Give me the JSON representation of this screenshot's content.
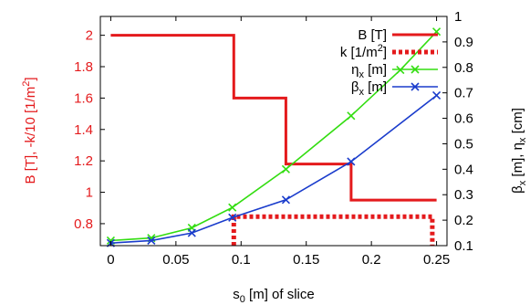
{
  "chart_data": {
    "type": "line",
    "x": [
      0,
      0.0311,
      0.0622,
      0.0933,
      0.1344,
      0.1844,
      0.2222,
      0.25
    ],
    "xlabel": "s₀ [m] of slice",
    "xlim": [
      -0.008,
      0.258
    ],
    "xticks": [
      "0",
      "0.05",
      "0.1",
      "0.15",
      "0.2",
      "0.25"
    ],
    "xtick_values": [
      0,
      0.05,
      0.1,
      0.15,
      0.2,
      0.25
    ],
    "ylabel_left": "B [T], -k/10 [1/m²]",
    "ylim_left": [
      0.66,
      2.12
    ],
    "yticks_left": [
      "0.8",
      "1",
      "1.2",
      "1.4",
      "1.6",
      "1.8",
      "2"
    ],
    "ytick_values_left": [
      0.8,
      1.0,
      1.2,
      1.4,
      1.6,
      1.8,
      2.0
    ],
    "ylabel_right": "βx [m], ηx [cm]",
    "ylim_right": [
      0.1,
      1.0
    ],
    "yticks_right": [
      "0.1",
      "0.2",
      "0.3",
      "0.4",
      "0.5",
      "0.6",
      "0.7",
      "0.8",
      "0.9",
      "1"
    ],
    "ytick_values_right": [
      0.1,
      0.2,
      0.3,
      0.4,
      0.5,
      0.6,
      0.7,
      0.8,
      0.9,
      1.0
    ],
    "grid": false,
    "legend_position": "top-right",
    "legend_labels": [
      "B [T]",
      "k [1/m²]",
      "ηx [m]",
      "βx [m]"
    ],
    "series": [
      {
        "name": "B [T]",
        "axis": "left",
        "style": "step",
        "color": "#e41a1c",
        "x": [
          0,
          0.0944,
          0.0944,
          0.1344,
          0.1344,
          0.1844,
          0.1844,
          0.25
        ],
        "values": [
          2.0,
          2.0,
          1.6,
          1.6,
          1.18,
          1.18,
          0.95,
          0.95
        ]
      },
      {
        "name": "k [1/m²]",
        "axis": "left",
        "style": "dotted-step",
        "color": "#e41a1c",
        "x": [
          0.0944,
          0.0944,
          0.2467,
          0.2467
        ],
        "values": [
          0.66,
          0.845,
          0.845,
          0.66
        ]
      },
      {
        "name": "ηx [m]",
        "axis": "right",
        "style": "line-x-markers",
        "color": "#33dd11",
        "x": [
          0,
          0.0311,
          0.0622,
          0.0933,
          0.1344,
          0.1844,
          0.2222,
          0.25
        ],
        "values": [
          0.12,
          0.13,
          0.17,
          0.25,
          0.4,
          0.61,
          0.79,
          0.94
        ]
      },
      {
        "name": "βx [m]",
        "axis": "right",
        "style": "line-x-markers",
        "color": "#1a3ccc",
        "x": [
          0,
          0.0311,
          0.0622,
          0.0933,
          0.1344,
          0.1844,
          0.25
        ],
        "values": [
          0.11,
          0.12,
          0.15,
          0.21,
          0.28,
          0.43,
          0.69
        ]
      }
    ]
  }
}
